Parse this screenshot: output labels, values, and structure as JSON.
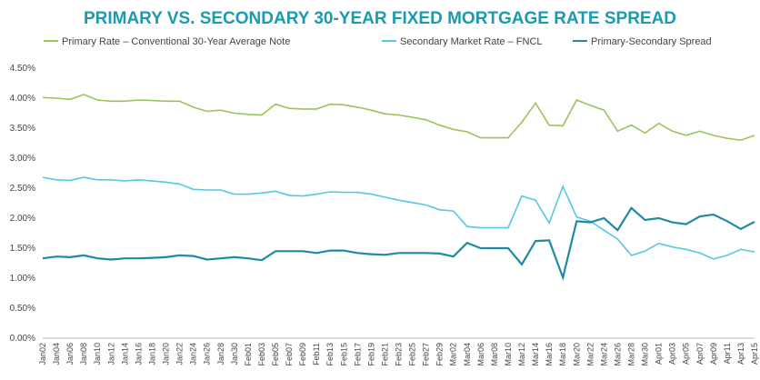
{
  "chart_data": {
    "type": "line",
    "title": "PRIMARY VS. SECONDARY 30-YEAR FIXED MORTGAGE RATE SPREAD",
    "categories": [
      "Jan02",
      "Jan04",
      "Jan06",
      "Jan08",
      "Jan10",
      "Jan12",
      "Jan14",
      "Jan16",
      "Jan18",
      "Jan20",
      "Jan22",
      "Jan24",
      "Jan26",
      "Jan28",
      "Jan30",
      "Feb01",
      "Feb03",
      "Feb05",
      "Feb07",
      "Feb09",
      "Feb11",
      "Feb13",
      "Feb15",
      "Feb17",
      "Feb19",
      "Feb21",
      "Feb23",
      "Feb25",
      "Feb27",
      "Feb29",
      "Mar02",
      "Mar04",
      "Mar06",
      "Mar08",
      "Mar10",
      "Mar12",
      "Mar14",
      "Mar16",
      "Mar18",
      "Mar20",
      "Mar22",
      "Mar24",
      "Mar26",
      "Mar28",
      "Mar30",
      "Apr01",
      "Apr03",
      "Apr05",
      "Apr07",
      "Apr09",
      "Apr11",
      "Apr13",
      "Apr15"
    ],
    "series": [
      {
        "name": "Primary Rate – Conventional 30-Year Average Note",
        "color": "#9cc35c",
        "values": [
          4.01,
          4.0,
          3.98,
          4.06,
          3.97,
          3.95,
          3.95,
          3.97,
          3.96,
          3.95,
          3.95,
          3.85,
          3.78,
          3.8,
          3.75,
          3.73,
          3.72,
          3.9,
          3.83,
          3.82,
          3.82,
          3.9,
          3.89,
          3.85,
          3.8,
          3.74,
          3.72,
          3.68,
          3.64,
          3.55,
          3.48,
          3.44,
          3.34,
          3.34,
          3.34,
          3.6,
          3.92,
          3.55,
          3.54,
          3.97,
          3.88,
          3.8,
          3.45,
          3.55,
          3.42,
          3.58,
          3.45,
          3.38,
          3.45,
          3.38,
          3.33,
          3.3,
          3.38
        ]
      },
      {
        "name": "Secondary Market Rate – FNCL",
        "color": "#55c8e6",
        "values": [
          2.68,
          2.64,
          2.63,
          2.68,
          2.64,
          2.64,
          2.62,
          2.64,
          2.62,
          2.6,
          2.57,
          2.48,
          2.47,
          2.47,
          2.4,
          2.4,
          2.42,
          2.45,
          2.38,
          2.37,
          2.4,
          2.44,
          2.43,
          2.43,
          2.4,
          2.35,
          2.3,
          2.26,
          2.22,
          2.14,
          2.12,
          1.86,
          1.84,
          1.84,
          1.84,
          2.37,
          2.3,
          1.92,
          2.53,
          2.02,
          1.95,
          1.8,
          1.65,
          1.38,
          1.45,
          1.58,
          1.52,
          1.48,
          1.42,
          1.32,
          1.38,
          1.48,
          1.44
        ]
      },
      {
        "name": "Primary-Secondary Spread",
        "color": "#1f8aa6",
        "values": [
          1.33,
          1.36,
          1.35,
          1.38,
          1.33,
          1.31,
          1.33,
          1.33,
          1.34,
          1.35,
          1.38,
          1.37,
          1.31,
          1.33,
          1.35,
          1.33,
          1.3,
          1.45,
          1.45,
          1.45,
          1.42,
          1.46,
          1.46,
          1.42,
          1.4,
          1.39,
          1.42,
          1.42,
          1.42,
          1.41,
          1.36,
          1.59,
          1.5,
          1.5,
          1.5,
          1.23,
          1.62,
          1.63,
          1.01,
          1.95,
          1.93,
          2.0,
          1.8,
          2.17,
          1.97,
          2.0,
          1.93,
          1.9,
          2.03,
          2.06,
          1.95,
          1.82,
          1.94
        ]
      }
    ],
    "ylim": [
      0,
      4.5
    ],
    "yticks": [
      {
        "value": 0,
        "label": "0.00%"
      },
      {
        "value": 0.5,
        "label": "0.50%"
      },
      {
        "value": 1,
        "label": "1.00%"
      },
      {
        "value": 1.5,
        "label": "1.50%"
      },
      {
        "value": 2,
        "label": "2.00%"
      },
      {
        "value": 2.5,
        "label": "2.50%"
      },
      {
        "value": 3,
        "label": "3.00%"
      },
      {
        "value": 3.5,
        "label": "3.50%"
      },
      {
        "value": 4,
        "label": "4.00%"
      },
      {
        "value": 4.5,
        "label": "4.50%"
      }
    ],
    "grid": false
  }
}
